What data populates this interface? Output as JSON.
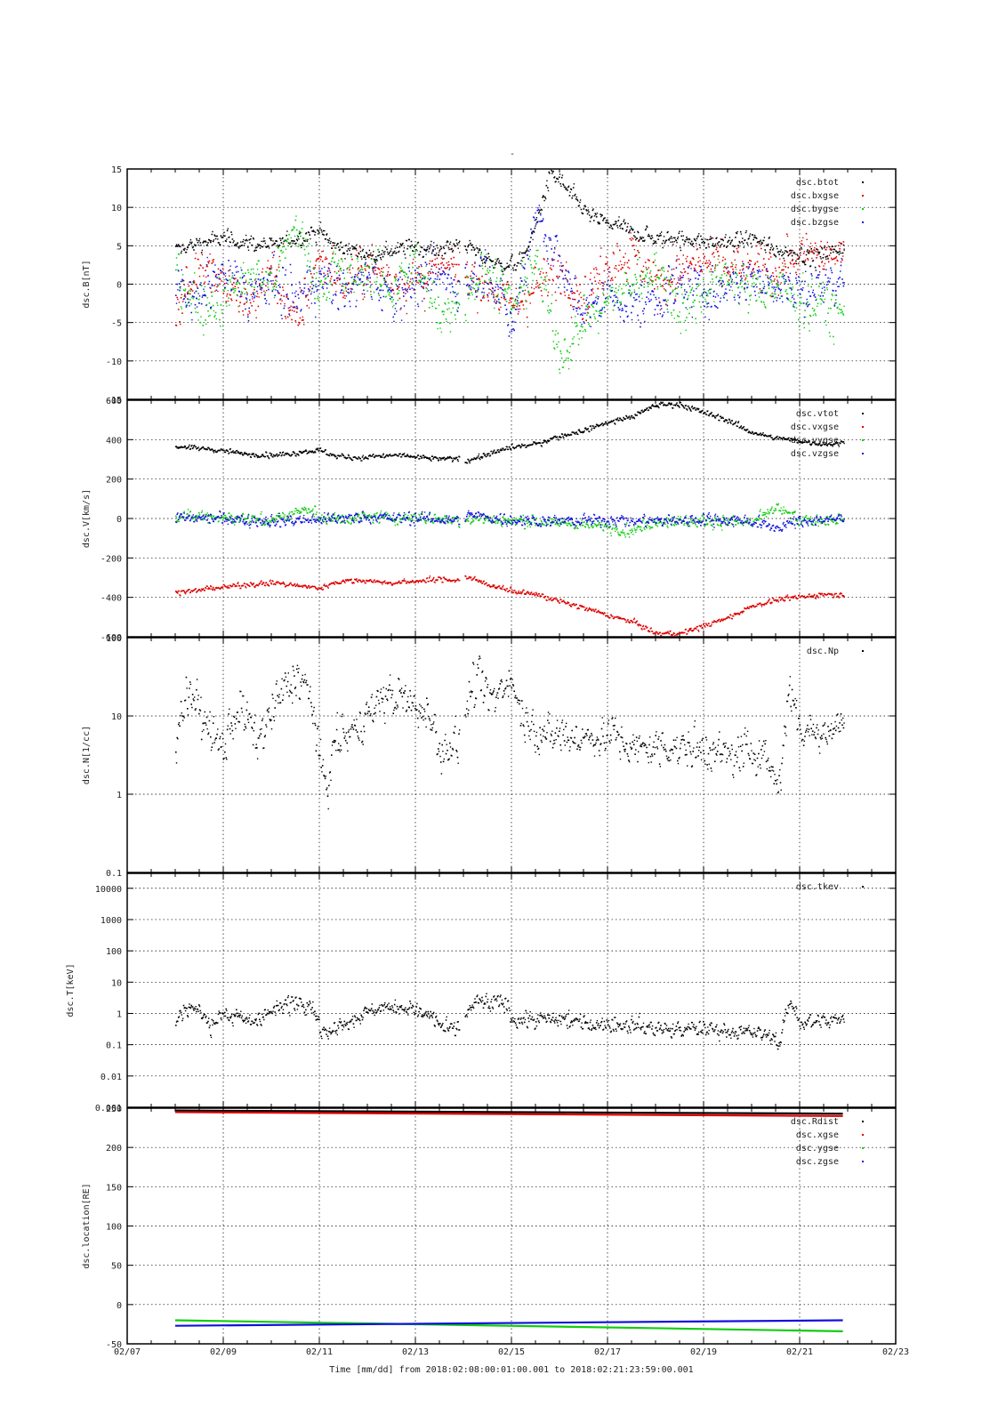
{
  "title": "-",
  "x_axis": {
    "ticks": [
      "02/07",
      "02/09",
      "02/11",
      "02/13",
      "02/15",
      "02/17",
      "02/19",
      "02/21",
      "02/23"
    ],
    "label": "Time [mm/dd]  from 2018:02:08:00:01:00.001  to  2018:02:21:23:59:00.001"
  },
  "colors": {
    "black": "#000000",
    "red": "#dd0000",
    "green": "#11cc11",
    "blue": "#1111dd"
  },
  "chart_data": [
    {
      "type": "scatter",
      "ylabel": "dsc.B[nT]",
      "yscale": "linear",
      "ylim": [
        -15,
        15
      ],
      "yticks": [
        15,
        10,
        5,
        0,
        -5,
        -10,
        -15
      ],
      "ytick_labels": [
        "15",
        "10",
        "5",
        "0",
        "-5",
        "-10",
        "-15"
      ],
      "x_units": "days since 02/07",
      "gap": [
        6.9,
        7.0
      ],
      "series": [
        {
          "name": "dsc.btot",
          "color": "#000000",
          "noise": 0.5,
          "x": [
            1.0,
            1.5,
            2.0,
            2.5,
            3.0,
            3.5,
            4.0,
            4.3,
            4.6,
            5.0,
            5.5,
            6.0,
            6.5,
            7.0,
            7.4,
            7.8,
            8.2,
            8.5,
            8.8,
            9.2,
            9.6,
            10.0,
            10.5,
            11.0,
            11.5,
            12.0,
            12.5,
            13.0,
            13.5,
            14.0,
            14.3,
            14.5,
            14.9
          ],
          "y": [
            4.5,
            5.5,
            6.0,
            5.5,
            5.0,
            6.0,
            7.0,
            5.0,
            4.5,
            4.0,
            4.5,
            5.0,
            4.5,
            5.5,
            3.5,
            2.5,
            3.0,
            8.0,
            14.5,
            12.0,
            9.0,
            8.0,
            7.0,
            6.0,
            6.0,
            5.5,
            5.5,
            6.0,
            4.5,
            4.0,
            3.5,
            4.0,
            5.0
          ]
        },
        {
          "name": "dsc.bxgse",
          "color": "#dd0000",
          "noise": 1.4,
          "x": [
            1.0,
            1.5,
            2.0,
            2.5,
            3.0,
            3.5,
            4.0,
            4.5,
            5.0,
            5.5,
            6.0,
            6.5,
            7.0,
            7.5,
            8.0,
            8.5,
            9.0,
            9.5,
            10.0,
            10.5,
            11.0,
            11.5,
            12.0,
            12.5,
            13.0,
            13.5,
            14.0,
            14.9
          ],
          "y": [
            -4.0,
            3.5,
            0.5,
            -3.0,
            2.0,
            -5.0,
            4.0,
            0.0,
            2.0,
            1.0,
            0.0,
            2.0,
            2.0,
            0.0,
            -3.0,
            0.0,
            2.0,
            -2.0,
            3.0,
            4.0,
            0.0,
            2.0,
            3.0,
            2.0,
            2.0,
            2.0,
            3.5,
            4.0
          ]
        },
        {
          "name": "dsc.bygse",
          "color": "#11cc11",
          "noise": 1.4,
          "x": [
            1.0,
            1.5,
            2.0,
            2.5,
            3.0,
            3.5,
            4.0,
            4.3,
            4.5,
            5.0,
            5.5,
            6.0,
            6.5,
            7.0,
            7.5,
            8.0,
            8.5,
            9.0,
            9.5,
            10.0,
            10.5,
            11.0,
            11.5,
            12.0,
            12.5,
            13.0,
            13.5,
            14.0,
            14.5,
            14.9
          ],
          "y": [
            2.0,
            -3.0,
            -2.0,
            1.0,
            0.0,
            8.0,
            -1.0,
            3.0,
            0.0,
            2.0,
            -1.0,
            3.0,
            -4.0,
            -1.0,
            2.0,
            -3.0,
            3.0,
            -9.0,
            -5.0,
            -2.0,
            0.0,
            2.0,
            -3.0,
            -1.0,
            1.0,
            -1.0,
            0.0,
            -2.0,
            -3.0,
            -4.0
          ]
        },
        {
          "name": "dsc.bzgse",
          "color": "#1111dd",
          "noise": 1.4,
          "x": [
            1.0,
            1.5,
            2.0,
            2.5,
            3.0,
            3.5,
            4.0,
            4.5,
            5.0,
            5.5,
            6.0,
            6.5,
            7.0,
            7.5,
            8.0,
            8.5,
            9.0,
            9.5,
            10.0,
            10.5,
            11.0,
            11.5,
            12.0,
            12.5,
            13.0,
            13.5,
            14.0,
            14.5,
            14.9
          ],
          "y": [
            0.0,
            -2.0,
            2.0,
            -1.0,
            0.0,
            -2.0,
            1.0,
            -1.0,
            1.0,
            -1.0,
            0.0,
            1.0,
            0.0,
            2.0,
            -6.0,
            10.0,
            2.0,
            -4.0,
            -1.0,
            -3.0,
            -2.0,
            0.0,
            -1.0,
            0.0,
            1.0,
            0.0,
            -1.0,
            0.0,
            1.0
          ]
        }
      ]
    },
    {
      "type": "scatter",
      "ylabel": "dsc.V[km/s]",
      "yscale": "linear",
      "ylim": [
        -600,
        600
      ],
      "yticks": [
        600,
        400,
        200,
        0,
        -200,
        -400,
        -600
      ],
      "ytick_labels": [
        "600",
        "400",
        "200",
        "0",
        "-200",
        "-400",
        "-600"
      ],
      "x_units": "days since 02/07",
      "gap": [
        6.9,
        7.0
      ],
      "series": [
        {
          "name": "dsc.vtot",
          "color": "#000000",
          "noise": 6,
          "x": [
            1.0,
            1.5,
            2.0,
            2.5,
            3.0,
            3.5,
            3.8,
            4.0,
            4.3,
            4.8,
            5.5,
            6.0,
            6.5,
            6.9,
            7.0,
            7.5,
            8.0,
            8.5,
            9.0,
            9.5,
            10.0,
            10.5,
            11.0,
            11.5,
            12.0,
            12.5,
            13.0,
            13.5,
            14.0,
            14.5,
            14.9
          ],
          "y": [
            370,
            360,
            345,
            330,
            325,
            335,
            345,
            350,
            320,
            310,
            325,
            315,
            305,
            310,
            290,
            330,
            365,
            380,
            420,
            450,
            490,
            520,
            580,
            580,
            540,
            500,
            440,
            410,
            395,
            380,
            385
          ]
        },
        {
          "name": "dsc.vxgse",
          "color": "#dd0000",
          "noise": 6,
          "x": [
            1.0,
            1.5,
            2.0,
            2.5,
            3.0,
            3.5,
            3.8,
            4.0,
            4.3,
            4.8,
            5.5,
            6.0,
            6.5,
            6.9,
            7.0,
            7.5,
            8.0,
            8.5,
            9.0,
            9.5,
            10.0,
            10.5,
            11.0,
            11.5,
            12.0,
            12.5,
            13.0,
            13.5,
            14.0,
            14.5,
            14.9
          ],
          "y": [
            -370,
            -360,
            -345,
            -330,
            -325,
            -335,
            -345,
            -350,
            -320,
            -310,
            -325,
            -315,
            -305,
            -310,
            -290,
            -330,
            -365,
            -380,
            -420,
            -450,
            -490,
            -520,
            -580,
            -580,
            -540,
            -500,
            -440,
            -410,
            -395,
            -380,
            -385
          ]
        },
        {
          "name": "dsc.vygse",
          "color": "#11cc11",
          "noise": 14,
          "x": [
            1.0,
            2.0,
            3.0,
            3.8,
            4.0,
            4.5,
            5.5,
            6.0,
            6.9,
            7.0,
            8.0,
            9.0,
            10.0,
            10.5,
            11.0,
            12.0,
            13.0,
            13.5,
            14.0,
            14.9
          ],
          "y": [
            15,
            10,
            -10,
            60,
            0,
            5,
            10,
            10,
            -5,
            10,
            -10,
            -20,
            -40,
            -60,
            -10,
            -10,
            -20,
            60,
            -10,
            0
          ]
        },
        {
          "name": "dsc.vzgse",
          "color": "#1111dd",
          "noise": 14,
          "x": [
            1.0,
            2.0,
            3.0,
            4.0,
            5.0,
            6.0,
            6.9,
            7.0,
            8.0,
            9.0,
            10.0,
            11.0,
            12.0,
            13.0,
            13.5,
            14.0,
            14.9
          ],
          "y": [
            10,
            0,
            -10,
            0,
            10,
            5,
            -5,
            20,
            -5,
            -10,
            -5,
            -10,
            0,
            -10,
            -40,
            -10,
            0
          ]
        }
      ]
    },
    {
      "type": "scatter",
      "ylabel": "dsc.N[1/cc]",
      "yscale": "log",
      "ylim": [
        0.1,
        100
      ],
      "yticks": [
        100,
        10,
        1,
        0.1
      ],
      "ytick_labels": [
        "100",
        "10",
        "1",
        "0.1"
      ],
      "x_units": "days since 02/07",
      "gap": [
        6.9,
        7.0
      ],
      "series": [
        {
          "name": "dsc.Np",
          "color": "#000000",
          "noise": 0.12,
          "x": [
            1.0,
            1.3,
            1.7,
            2.0,
            2.3,
            2.7,
            3.0,
            3.3,
            3.6,
            3.9,
            4.0,
            4.2,
            4.3,
            4.6,
            5.0,
            5.4,
            5.8,
            6.2,
            6.5,
            6.7,
            6.9,
            7.0,
            7.3,
            7.6,
            7.9,
            8.2,
            8.6,
            9.0,
            9.5,
            10.0,
            10.5,
            11.0,
            11.5,
            12.0,
            12.5,
            13.0,
            13.4,
            13.6,
            13.8,
            14.0,
            14.5,
            14.9
          ],
          "y": [
            6,
            20,
            6,
            4,
            12,
            5,
            10,
            25,
            30,
            8,
            2,
            1.5,
            5,
            6,
            10,
            20,
            15,
            12,
            3,
            5,
            4,
            12,
            30,
            15,
            30,
            10,
            6,
            6,
            5,
            6,
            4,
            4,
            4,
            4,
            3,
            4,
            2,
            1.5,
            20,
            6,
            7,
            8
          ]
        }
      ]
    },
    {
      "type": "scatter",
      "ylabel": "dsc.T[keV]",
      "yscale": "log",
      "ylim": [
        0.001,
        30000
      ],
      "yticks": [
        10000,
        1000,
        100,
        10,
        1,
        0.1,
        0.01,
        0.001
      ],
      "ytick_labels": [
        "10000",
        "1000",
        "100",
        "10",
        "1",
        "0.1",
        "0.01",
        "0.001"
      ],
      "x_units": "days since 02/07",
      "gap": [
        6.9,
        7.0
      ],
      "series": [
        {
          "name": "dsc.tkev",
          "color": "#000000",
          "noise": 0.12,
          "x": [
            1.0,
            1.3,
            1.7,
            2.0,
            2.5,
            3.0,
            3.5,
            3.8,
            4.0,
            4.2,
            4.4,
            4.8,
            5.2,
            5.6,
            6.0,
            6.4,
            6.6,
            6.9,
            7.0,
            7.3,
            7.6,
            7.8,
            8.0,
            8.5,
            9.0,
            9.5,
            10.0,
            10.5,
            11.0,
            11.5,
            12.0,
            12.5,
            13.0,
            13.4,
            13.6,
            13.8,
            14.0,
            14.5,
            14.9
          ],
          "y": [
            0.6,
            1.8,
            0.4,
            1.0,
            0.5,
            1.2,
            2.5,
            2.0,
            0.3,
            0.2,
            0.5,
            0.8,
            1.5,
            1.8,
            1.3,
            0.6,
            0.3,
            0.35,
            0.8,
            2.5,
            2.0,
            2.5,
            0.7,
            0.6,
            0.7,
            0.5,
            0.5,
            0.45,
            0.35,
            0.3,
            0.35,
            0.3,
            0.25,
            0.2,
            0.1,
            1.8,
            0.5,
            0.6,
            0.7
          ]
        }
      ]
    },
    {
      "type": "line",
      "ylabel": "dsc.location[RE]",
      "yscale": "linear",
      "ylim": [
        -50,
        250
      ],
      "yticks": [
        250,
        200,
        150,
        100,
        50,
        0,
        -50
      ],
      "ytick_labels": [
        "250",
        "200",
        "150",
        "100",
        "50",
        "0",
        "-50"
      ],
      "x_units": "days since 02/07",
      "series": [
        {
          "name": "dsc.Rdist",
          "color": "#000000",
          "x": [
            1.0,
            14.9
          ],
          "y": [
            247,
            243
          ]
        },
        {
          "name": "dsc.xgse",
          "color": "#dd0000",
          "x": [
            1.0,
            14.9
          ],
          "y": [
            245,
            240
          ]
        },
        {
          "name": "dsc.ygse",
          "color": "#11cc11",
          "x": [
            1.0,
            14.9
          ],
          "y": [
            -20,
            -34
          ]
        },
        {
          "name": "dsc.zgse",
          "color": "#1111dd",
          "x": [
            1.0,
            14.9
          ],
          "y": [
            -27,
            -20
          ]
        }
      ]
    }
  ]
}
